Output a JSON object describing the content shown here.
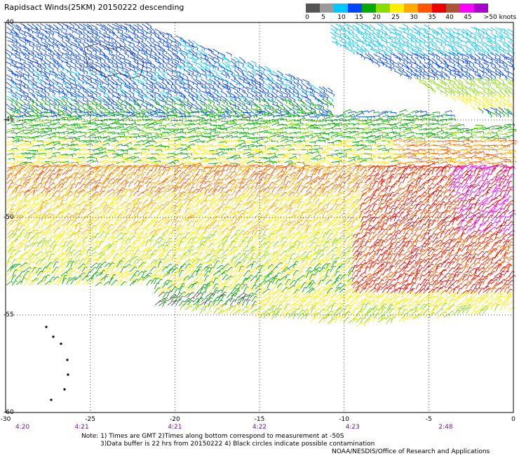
{
  "title": "Rapidsact Winds(25KM) 20150222 descending",
  "colorbar": {
    "labels": [
      "0",
      "5",
      "10",
      "15",
      "20",
      "25",
      "30",
      "35",
      "40",
      "45",
      ">50 knots"
    ],
    "colors": [
      "#555555",
      "#9a9a9a",
      "#00c8ff",
      "#0044ff",
      "#00aa00",
      "#88dd00",
      "#ffee00",
      "#ffaa00",
      "#ff5500",
      "#ee0000",
      "#aa5533",
      "#ff00ff",
      "#aa00cc"
    ]
  },
  "map": {
    "lon_range": [
      -30,
      0
    ],
    "lat_range": [
      -40,
      -60
    ],
    "lon_ticks": [
      "-30",
      "-25",
      "-20",
      "-15",
      "-10",
      "-5",
      "0"
    ],
    "lat_ticks": [
      "-40",
      "-45",
      "-50",
      "-55",
      "-60"
    ],
    "time_ticks": [
      {
        "lon": -29,
        "time": "4:20"
      },
      {
        "lon": -25.5,
        "time": "4:21"
      },
      {
        "lon": -20,
        "time": "4:21"
      },
      {
        "lon": -15,
        "time": "4:22"
      },
      {
        "lon": -9.5,
        "time": "4:23"
      },
      {
        "lon": -4,
        "time": "2:48"
      }
    ],
    "grid": "dotted"
  },
  "notes": {
    "line1": "Note: 1) Times are GMT 2)Times along bottom correspond to measurement at -50S",
    "line2": "3)Data buffer is 22 hrs from 20150222 4) Black circles indicate possible contamination"
  },
  "credit": "NOAA/NESDIS/Office of Research and Applications"
}
